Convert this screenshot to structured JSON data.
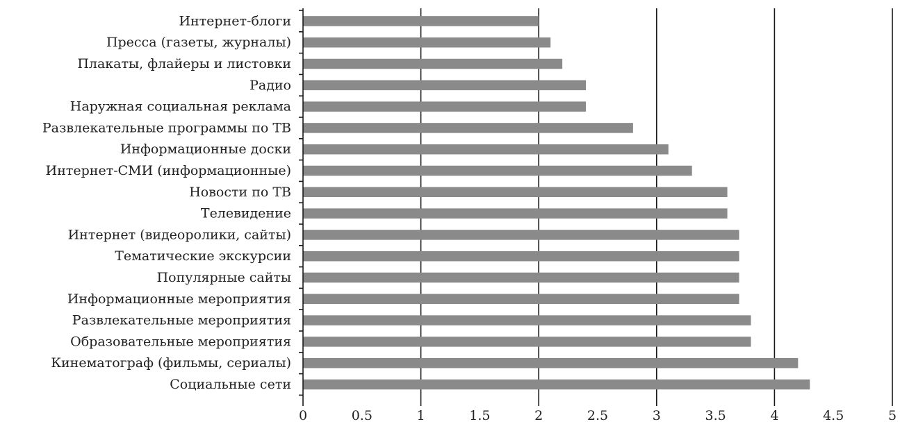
{
  "chart_data": {
    "type": "bar",
    "orientation": "horizontal",
    "title": "",
    "xlabel": "",
    "ylabel": "",
    "xlim": [
      0,
      5
    ],
    "x_ticks": [
      "0",
      "0.5",
      "1",
      "1.5",
      "2",
      "2.5",
      "3",
      "3.5",
      "4",
      "4.5",
      "5"
    ],
    "grid": "vertical",
    "bar_color": "#8a8a8a",
    "categories": [
      "Интернет-блоги",
      "Пресса (газеты, журналы)",
      "Плакаты, флайеры и листовки",
      "Радио",
      "Наружная социальная реклама",
      "Развлекательные программы по ТВ",
      "Информационные доски",
      "Интернет-СМИ (информационные)",
      "Новости по ТВ",
      "Телевидение",
      "Интернет (видеоролики, сайты)",
      "Тематические экскурсии",
      "Популярные сайты",
      "Информационные мероприятия",
      "Развлекательные мероприятия",
      "Образовательные мероприятия",
      "Кинематограф (фильмы, сериалы)",
      "Социальные сети"
    ],
    "values": [
      2.0,
      2.1,
      2.2,
      2.4,
      2.4,
      2.8,
      3.1,
      3.3,
      3.6,
      3.6,
      3.7,
      3.7,
      3.7,
      3.7,
      3.8,
      3.8,
      4.2,
      4.3
    ]
  }
}
